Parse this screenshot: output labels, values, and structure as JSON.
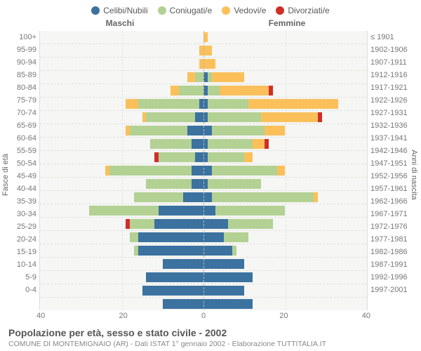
{
  "legend": [
    {
      "label": "Celibi/Nubili",
      "color": "#3b72a0"
    },
    {
      "label": "Coniugati/e",
      "color": "#b3d193"
    },
    {
      "label": "Vedovi/e",
      "color": "#fbc05a"
    },
    {
      "label": "Divorziati/e",
      "color": "#cf2e29"
    }
  ],
  "headers": {
    "male": "Maschi",
    "female": "Femmine"
  },
  "axis_left_label": "Fasce di età",
  "axis_right_label": "Anni di nascita",
  "xmax": 40,
  "xticks_m": [
    "40",
    "20",
    "0"
  ],
  "xticks_f": [
    "0",
    "20",
    "40"
  ],
  "footer_title": "Popolazione per età, sesso e stato civile - 2002",
  "footer_sub": "COMUNE DI MONTEMIGNAIO (AR) - Dati ISTAT 1° gennaio 2002 - Elaborazione TUTTITALIA.IT",
  "rows": [
    {
      "age": "100+",
      "birth": "≤ 1901",
      "m": {
        "cel": 0,
        "con": 0,
        "ved": 0,
        "div": 0
      },
      "f": {
        "cel": 0,
        "con": 0,
        "ved": 1,
        "div": 0
      }
    },
    {
      "age": "95-99",
      "birth": "1902-1906",
      "m": {
        "cel": 0,
        "con": 0,
        "ved": 1,
        "div": 0
      },
      "f": {
        "cel": 0,
        "con": 0,
        "ved": 2,
        "div": 0
      }
    },
    {
      "age": "90-94",
      "birth": "1907-1911",
      "m": {
        "cel": 0,
        "con": 0,
        "ved": 1,
        "div": 0
      },
      "f": {
        "cel": 0,
        "con": 0,
        "ved": 3,
        "div": 0
      }
    },
    {
      "age": "85-89",
      "birth": "1912-1916",
      "m": {
        "cel": 0,
        "con": 2,
        "ved": 2,
        "div": 0
      },
      "f": {
        "cel": 1,
        "con": 1,
        "ved": 8,
        "div": 0
      }
    },
    {
      "age": "80-84",
      "birth": "1917-1921",
      "m": {
        "cel": 0,
        "con": 6,
        "ved": 2,
        "div": 0
      },
      "f": {
        "cel": 1,
        "con": 3,
        "ved": 12,
        "div": 1
      }
    },
    {
      "age": "75-79",
      "birth": "1922-1926",
      "m": {
        "cel": 1,
        "con": 15,
        "ved": 3,
        "div": 0
      },
      "f": {
        "cel": 1,
        "con": 10,
        "ved": 22,
        "div": 0
      }
    },
    {
      "age": "70-74",
      "birth": "1927-1931",
      "m": {
        "cel": 2,
        "con": 12,
        "ved": 1,
        "div": 0
      },
      "f": {
        "cel": 1,
        "con": 13,
        "ved": 14,
        "div": 1
      }
    },
    {
      "age": "65-69",
      "birth": "1932-1936",
      "m": {
        "cel": 4,
        "con": 14,
        "ved": 1,
        "div": 0
      },
      "f": {
        "cel": 2,
        "con": 13,
        "ved": 5,
        "div": 0
      }
    },
    {
      "age": "60-64",
      "birth": "1937-1941",
      "m": {
        "cel": 3,
        "con": 10,
        "ved": 0,
        "div": 0
      },
      "f": {
        "cel": 1,
        "con": 11,
        "ved": 3,
        "div": 1
      }
    },
    {
      "age": "55-59",
      "birth": "1942-1946",
      "m": {
        "cel": 2,
        "con": 9,
        "ved": 0,
        "div": 1
      },
      "f": {
        "cel": 1,
        "con": 9,
        "ved": 2,
        "div": 0
      }
    },
    {
      "age": "50-54",
      "birth": "1947-1951",
      "m": {
        "cel": 3,
        "con": 20,
        "ved": 1,
        "div": 0
      },
      "f": {
        "cel": 2,
        "con": 16,
        "ved": 2,
        "div": 0
      }
    },
    {
      "age": "45-49",
      "birth": "1952-1956",
      "m": {
        "cel": 3,
        "con": 11,
        "ved": 0,
        "div": 0
      },
      "f": {
        "cel": 1,
        "con": 13,
        "ved": 0,
        "div": 0
      }
    },
    {
      "age": "40-44",
      "birth": "1957-1961",
      "m": {
        "cel": 5,
        "con": 12,
        "ved": 0,
        "div": 0
      },
      "f": {
        "cel": 2,
        "con": 25,
        "ved": 1,
        "div": 0
      }
    },
    {
      "age": "35-39",
      "birth": "1962-1966",
      "m": {
        "cel": 11,
        "con": 17,
        "ved": 0,
        "div": 0
      },
      "f": {
        "cel": 3,
        "con": 17,
        "ved": 0,
        "div": 0
      }
    },
    {
      "age": "30-34",
      "birth": "1967-1971",
      "m": {
        "cel": 12,
        "con": 6,
        "ved": 0,
        "div": 1
      },
      "f": {
        "cel": 6,
        "con": 11,
        "ved": 0,
        "div": 0
      }
    },
    {
      "age": "25-29",
      "birth": "1972-1976",
      "m": {
        "cel": 16,
        "con": 2,
        "ved": 0,
        "div": 0
      },
      "f": {
        "cel": 5,
        "con": 6,
        "ved": 0,
        "div": 0
      }
    },
    {
      "age": "20-24",
      "birth": "1977-1981",
      "m": {
        "cel": 16,
        "con": 1,
        "ved": 0,
        "div": 0
      },
      "f": {
        "cel": 7,
        "con": 1,
        "ved": 0,
        "div": 0
      }
    },
    {
      "age": "15-19",
      "birth": "1982-1986",
      "m": {
        "cel": 10,
        "con": 0,
        "ved": 0,
        "div": 0
      },
      "f": {
        "cel": 10,
        "con": 0,
        "ved": 0,
        "div": 0
      }
    },
    {
      "age": "10-14",
      "birth": "1987-1991",
      "m": {
        "cel": 14,
        "con": 0,
        "ved": 0,
        "div": 0
      },
      "f": {
        "cel": 12,
        "con": 0,
        "ved": 0,
        "div": 0
      }
    },
    {
      "age": "5-9",
      "birth": "1992-1996",
      "m": {
        "cel": 15,
        "con": 0,
        "ved": 0,
        "div": 0
      },
      "f": {
        "cel": 10,
        "con": 0,
        "ved": 0,
        "div": 0
      }
    },
    {
      "age": "0-4",
      "birth": "1997-2001",
      "m": {
        "cel": 10,
        "con": 0,
        "ved": 0,
        "div": 0
      },
      "f": {
        "cel": 12,
        "con": 0,
        "ved": 0,
        "div": 0
      }
    }
  ]
}
